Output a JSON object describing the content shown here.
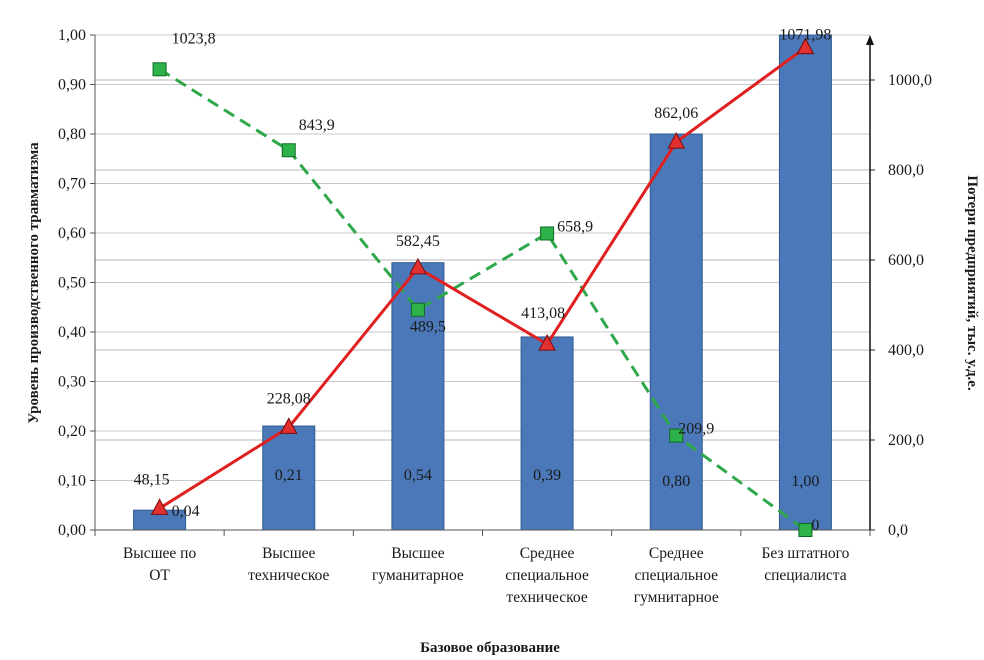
{
  "chart_data": {
    "type": "bar",
    "xlabel": "Базовое образование",
    "ylabel": "Уровень производственного травматизма",
    "y2label": "Потери предприятий, тыс. у.д.е.",
    "categories": [
      [
        "Высшее по",
        "ОТ"
      ],
      [
        "Высшее",
        "техническое"
      ],
      [
        "Высшее",
        "гуманитарное"
      ],
      [
        "Среднее",
        "специальное",
        "техническое"
      ],
      [
        "Среднее",
        "специальное",
        "гумнитарное"
      ],
      [
        "Без штатного",
        "специалиста"
      ]
    ],
    "ylim": [
      0,
      1.0
    ],
    "y_ticks": [
      "0,00",
      "0,10",
      "0,20",
      "0,30",
      "0,40",
      "0,50",
      "0,60",
      "0,70",
      "0,80",
      "0,90",
      "1,00"
    ],
    "y2lim": [
      0,
      1100
    ],
    "y2_ticks": [
      "0,0",
      "200,0",
      "400,0",
      "600,0",
      "800,0",
      "1000,0"
    ],
    "grid": true,
    "series": [
      {
        "kind": "bar",
        "axis": "left",
        "color": "#4a78b8",
        "values": [
          0.04,
          0.21,
          0.54,
          0.39,
          0.8,
          1.0
        ],
        "labels": [
          "0,04",
          "0,21",
          "0,54",
          "0,39",
          "0,80",
          "1,00"
        ]
      },
      {
        "kind": "line",
        "axis": "right",
        "color": "#e02020",
        "marker": "triangle",
        "values": [
          48.15,
          228.08,
          582.45,
          413.08,
          862.06,
          1071.98
        ],
        "labels": [
          "48,15",
          "228,08",
          "582,45",
          "413,08",
          "862,06",
          "1071,98"
        ]
      },
      {
        "kind": "line",
        "axis": "right",
        "color": "#2ea84a",
        "marker": "square",
        "dashed": true,
        "values": [
          1023.8,
          843.9,
          489.5,
          658.9,
          209.9,
          0
        ],
        "labels": [
          "1023,8",
          "843,9",
          "489,5",
          "658,9",
          "209,9",
          "0"
        ]
      }
    ]
  }
}
